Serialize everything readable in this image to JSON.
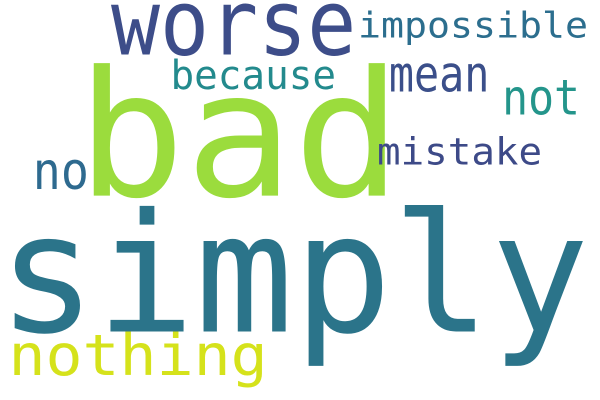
{
  "words": [
    {
      "id": "simply",
      "text": "simply",
      "color": "#2b748a"
    },
    {
      "id": "bad",
      "text": "bad",
      "color": "#9bdc3d"
    },
    {
      "id": "worse",
      "text": "worse",
      "color": "#3d4d89"
    },
    {
      "id": "nothing",
      "text": "nothing",
      "color": "#d5e21b"
    },
    {
      "id": "impossible",
      "text": "impossible",
      "color": "#2c6e8e"
    },
    {
      "id": "because",
      "text": "because",
      "color": "#238a8d"
    },
    {
      "id": "mean",
      "text": "mean",
      "color": "#3b4f8a"
    },
    {
      "id": "not",
      "text": "not",
      "color": "#24958b"
    },
    {
      "id": "mistake",
      "text": "mistake",
      "color": "#3d4a88"
    },
    {
      "id": "no",
      "text": "no",
      "color": "#2e6a8f"
    }
  ]
}
